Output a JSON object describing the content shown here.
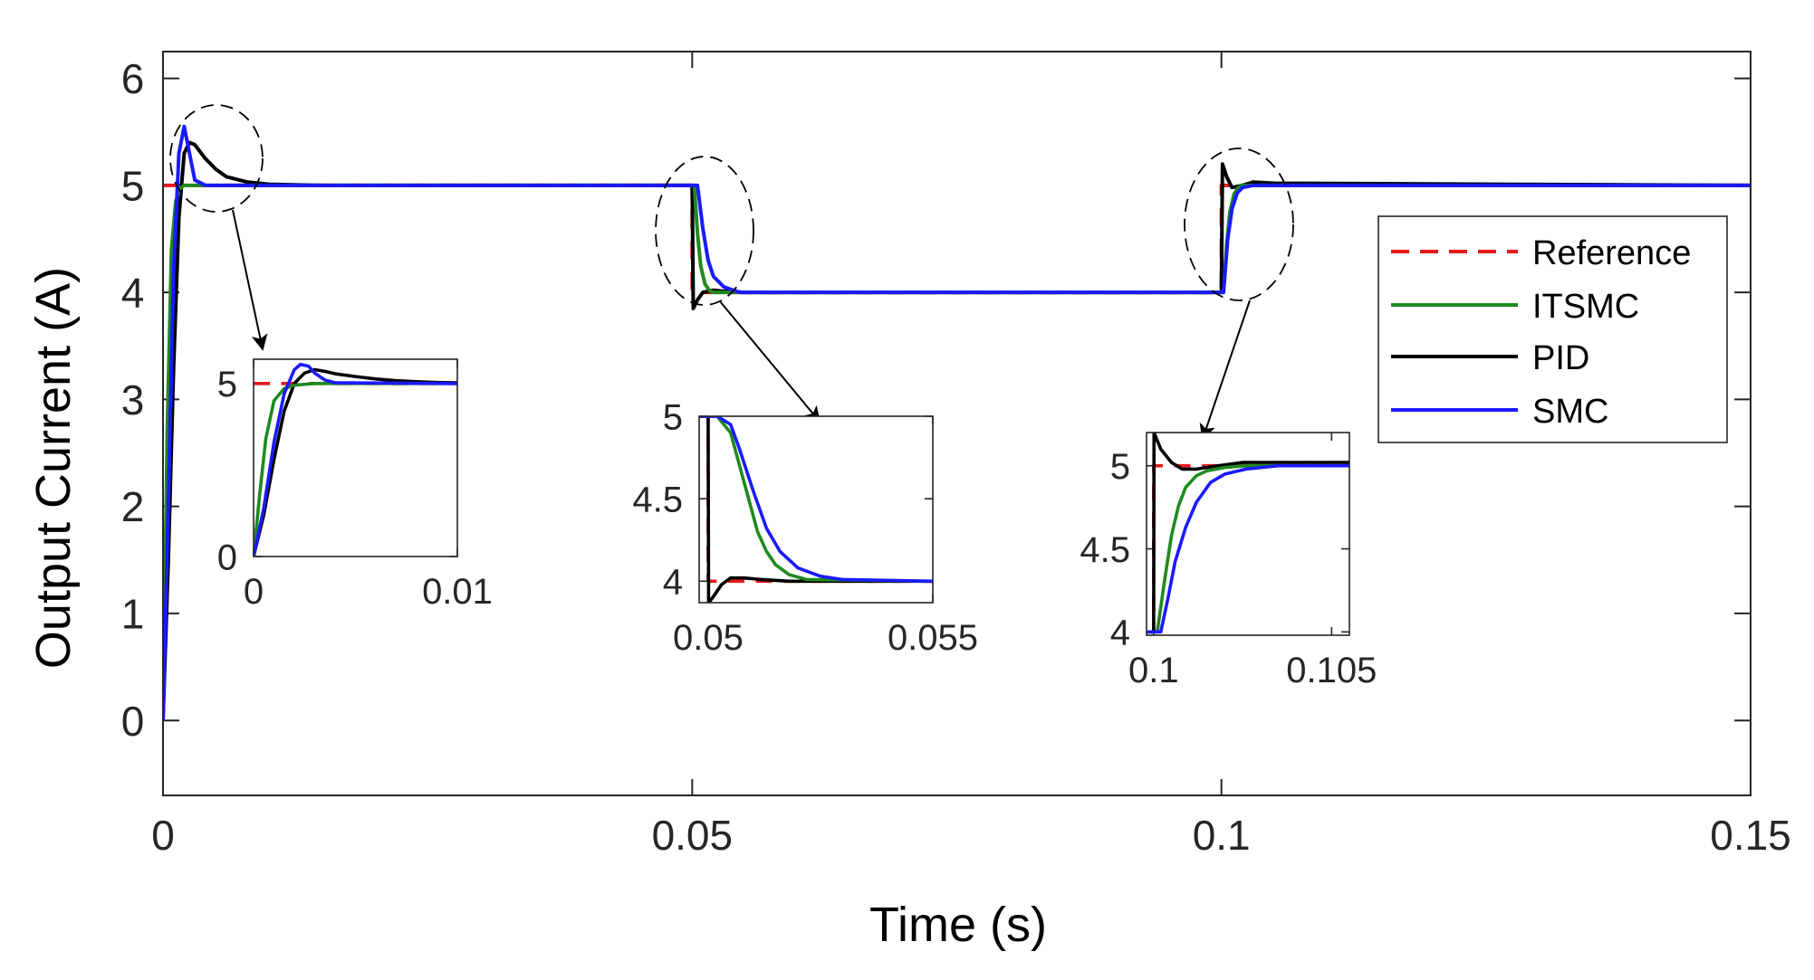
{
  "chart_data": {
    "type": "line",
    "xlabel": "Time (s)",
    "ylabel": "Output Current (A)",
    "xlim": [
      0,
      0.15
    ],
    "ylim": [
      -0.7,
      6.25
    ],
    "xticks": [
      0,
      0.05,
      0.1,
      0.15
    ],
    "xtick_labels": [
      "0",
      "0.05",
      "0.1",
      "0.15"
    ],
    "yticks": [
      0,
      1,
      2,
      3,
      4,
      5,
      6
    ],
    "ytick_labels": [
      "0",
      "1",
      "2",
      "3",
      "4",
      "5",
      "6"
    ],
    "grid": false,
    "legend_location": "right, below top",
    "legend": [
      {
        "name": "Reference",
        "color": "#e41a1c",
        "style": "dash-dot"
      },
      {
        "name": "ITSMC",
        "color": "#1f8a1f",
        "style": "solid"
      },
      {
        "name": "PID",
        "color": "#000000",
        "style": "solid"
      },
      {
        "name": "SMC",
        "color": "#1a1aff",
        "style": "solid"
      }
    ],
    "series": [
      {
        "name": "Reference",
        "x": [
          0,
          0.05,
          0.05,
          0.1,
          0.1,
          0.15
        ],
        "y": [
          5,
          5,
          4,
          4,
          5,
          5
        ]
      },
      {
        "name": "ITSMC",
        "x": [
          0,
          0.0004,
          0.0008,
          0.0012,
          0.0016,
          0.002,
          0.0025,
          0.003,
          0.05,
          0.0502,
          0.0505,
          0.0508,
          0.0512,
          0.0516,
          0.052,
          0.053,
          0.1,
          0.1002,
          0.1005,
          0.1008,
          0.1012,
          0.1016,
          0.102,
          0.103,
          0.15
        ],
        "y": [
          0,
          2.7,
          4.4,
          4.85,
          4.97,
          5.0,
          5.0,
          5.0,
          5.0,
          5.0,
          4.55,
          4.25,
          4.08,
          4.02,
          4.0,
          4.0,
          4.0,
          4.0,
          4.45,
          4.75,
          4.92,
          4.98,
          5.0,
          5.0,
          5.0
        ]
      },
      {
        "name": "PID",
        "x": [
          0,
          0.0005,
          0.001,
          0.0015,
          0.002,
          0.0025,
          0.003,
          0.004,
          0.005,
          0.006,
          0.008,
          0.01,
          0.015,
          0.05,
          0.0501,
          0.0505,
          0.051,
          0.052,
          0.053,
          0.055,
          0.1,
          0.1001,
          0.1005,
          0.101,
          0.102,
          0.103,
          0.105,
          0.15
        ],
        "y": [
          0,
          1.5,
          3.3,
          4.7,
          5.3,
          5.4,
          5.38,
          5.25,
          5.15,
          5.08,
          5.03,
          5.01,
          5.0,
          5.0,
          3.85,
          3.93,
          4.0,
          4.02,
          4.01,
          4.0,
          4.0,
          5.2,
          5.08,
          4.98,
          5.0,
          5.03,
          5.02,
          5.0
        ]
      },
      {
        "name": "SMC",
        "x": [
          0,
          0.0005,
          0.001,
          0.0015,
          0.002,
          0.0025,
          0.003,
          0.004,
          0.005,
          0.05,
          0.0505,
          0.051,
          0.0515,
          0.052,
          0.053,
          0.0545,
          0.056,
          0.1,
          0.1002,
          0.1006,
          0.101,
          0.1015,
          0.102,
          0.103,
          0.15
        ],
        "y": [
          0,
          2.0,
          4.2,
          5.3,
          5.55,
          5.3,
          5.05,
          5.0,
          5.0,
          5.0,
          5.0,
          4.6,
          4.3,
          4.15,
          4.05,
          4.0,
          4.0,
          4.0,
          4.0,
          4.5,
          4.78,
          4.93,
          4.98,
          5.0,
          5.0
        ]
      }
    ],
    "insets": [
      {
        "name": "start-transient",
        "xlim": [
          0,
          0.01
        ],
        "ylim": [
          0,
          5.7
        ],
        "xticks": [
          0,
          0.01
        ],
        "xtick_labels": [
          "0",
          "0.01"
        ],
        "yticks": [
          0,
          5
        ],
        "ytick_labels": [
          "0",
          "5"
        ],
        "series": [
          {
            "name": "Reference",
            "x": [
              0,
              0.001,
              0.01
            ],
            "y": [
              5,
              5,
              5
            ]
          },
          {
            "name": "ITSMC",
            "x": [
              0,
              0.0003,
              0.0006,
              0.001,
              0.0015,
              0.002,
              0.003,
              0.004,
              0.01
            ],
            "y": [
              0,
              1.8,
              3.4,
              4.5,
              4.85,
              4.95,
              5.0,
              5.0,
              5.0
            ]
          },
          {
            "name": "PID",
            "x": [
              0,
              0.0005,
              0.001,
              0.0015,
              0.002,
              0.0025,
              0.003,
              0.0035,
              0.004,
              0.005,
              0.006,
              0.007,
              0.008,
              0.009,
              0.01
            ],
            "y": [
              0,
              1.2,
              2.8,
              4.2,
              5.0,
              5.3,
              5.4,
              5.35,
              5.28,
              5.2,
              5.13,
              5.08,
              5.05,
              5.03,
              5.02
            ]
          },
          {
            "name": "SMC",
            "x": [
              0,
              0.0005,
              0.001,
              0.0015,
              0.002,
              0.0023,
              0.0027,
              0.003,
              0.0035,
              0.004,
              0.01
            ],
            "y": [
              0,
              1.4,
              3.3,
              4.7,
              5.4,
              5.55,
              5.5,
              5.3,
              5.1,
              5.02,
              5.0
            ]
          }
        ]
      },
      {
        "name": "step-down-transient",
        "xlim": [
          0.0498,
          0.055
        ],
        "ylim": [
          3.87,
          5.0
        ],
        "xticks": [
          0.05,
          0.055
        ],
        "xtick_labels": [
          "0.05",
          "0.055"
        ],
        "yticks": [
          4,
          4.5,
          5
        ],
        "ytick_labels": [
          "4",
          "4.5",
          "5"
        ],
        "series": [
          {
            "name": "Reference",
            "x": [
              0.0498,
              0.05,
              0.05,
              0.055
            ],
            "y": [
              5,
              5,
              4,
              4
            ]
          },
          {
            "name": "ITSMC",
            "x": [
              0.0498,
              0.0502,
              0.0505,
              0.0507,
              0.0509,
              0.0511,
              0.0513,
              0.0515,
              0.0518,
              0.0522,
              0.055
            ],
            "y": [
              5.0,
              5.0,
              4.9,
              4.7,
              4.5,
              4.3,
              4.18,
              4.1,
              4.04,
              4.01,
              4.0
            ]
          },
          {
            "name": "PID",
            "x": [
              0.0498,
              0.05,
              0.05001,
              0.0501,
              0.0503,
              0.0505,
              0.0508,
              0.0512,
              0.0518,
              0.055
            ],
            "y": [
              5.0,
              5.0,
              3.87,
              3.9,
              3.98,
              4.02,
              4.02,
              4.01,
              4.0,
              4.0
            ]
          },
          {
            "name": "SMC",
            "x": [
              0.0498,
              0.0502,
              0.0505,
              0.0507,
              0.051,
              0.0513,
              0.0516,
              0.052,
              0.0525,
              0.053,
              0.055
            ],
            "y": [
              5.0,
              5.0,
              4.95,
              4.8,
              4.55,
              4.32,
              4.18,
              4.08,
              4.03,
              4.01,
              4.0
            ]
          }
        ]
      },
      {
        "name": "step-up-transient",
        "xlim": [
          0.0998,
          0.1055
        ],
        "ylim": [
          3.98,
          5.2
        ],
        "xticks": [
          0.1,
          0.105
        ],
        "xtick_labels": [
          "0.1",
          "0.105"
        ],
        "yticks": [
          4,
          4.5,
          5
        ],
        "ytick_labels": [
          "4",
          "4.5",
          "5"
        ],
        "series": [
          {
            "name": "Reference",
            "x": [
              0.0998,
              0.1,
              0.1,
              0.1055
            ],
            "y": [
              4,
              4,
              5,
              5
            ]
          },
          {
            "name": "ITSMC",
            "x": [
              0.0998,
              0.1001,
              0.1003,
              0.1005,
              0.1007,
              0.1009,
              0.1012,
              0.1015,
              0.102,
              0.1026,
              0.1055
            ],
            "y": [
              4.0,
              4.0,
              4.3,
              4.58,
              4.76,
              4.87,
              4.94,
              4.97,
              4.99,
              5.0,
              5.0
            ]
          },
          {
            "name": "PID",
            "x": [
              0.0998,
              0.1,
              0.10001,
              0.1002,
              0.1005,
              0.1008,
              0.1012,
              0.1018,
              0.1025,
              0.1035,
              0.1055
            ],
            "y": [
              4.0,
              4.0,
              5.2,
              5.1,
              5.02,
              4.98,
              4.98,
              5.0,
              5.02,
              5.02,
              5.02
            ]
          },
          {
            "name": "SMC",
            "x": [
              0.0998,
              0.1002,
              0.1004,
              0.1006,
              0.1009,
              0.1012,
              0.1016,
              0.102,
              0.1026,
              0.1035,
              0.1055
            ],
            "y": [
              4.0,
              4.0,
              4.2,
              4.42,
              4.63,
              4.78,
              4.9,
              4.95,
              4.98,
              5.0,
              5.0
            ]
          }
        ]
      }
    ]
  }
}
